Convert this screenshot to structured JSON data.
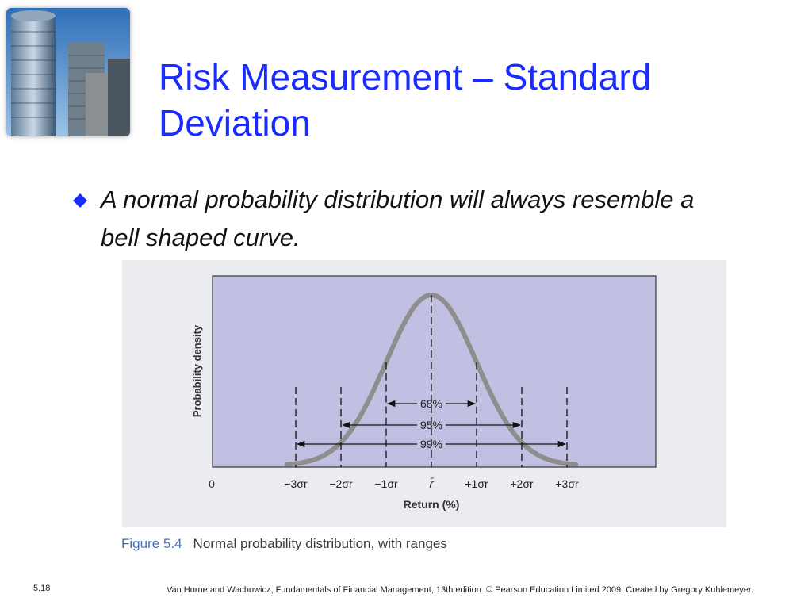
{
  "slide": {
    "title": "Risk Measurement – Standard Deviation",
    "bullet": "A normal probability distribution will always resemble a bell shaped curve.",
    "number": "5.18",
    "footer": "Van Horne and Wachowicz, Fundamentals of Financial Management, 13th edition. © Pearson Education Limited 2009. Created by Gregory Kuhlemeyer."
  },
  "figure": {
    "label": "Figure 5.4",
    "caption": "Normal probability distribution, with ranges"
  },
  "colors": {
    "title": "#1a2bff",
    "bullet": "#1a2bff",
    "plot_bg": "#c1c0e2",
    "curve": "#8e8e8e"
  },
  "chart_data": {
    "type": "line",
    "title": "",
    "xlabel": "Return (%)",
    "ylabel": "Probability density",
    "origin_label": "0",
    "mean_label": "r̄",
    "x": [
      -3,
      -2,
      -1,
      0,
      1,
      2,
      3
    ],
    "ticks": [
      {
        "sigma": -3,
        "label": "−3σr"
      },
      {
        "sigma": -2,
        "label": "−2σr"
      },
      {
        "sigma": -1,
        "label": "−1σr"
      },
      {
        "sigma": 1,
        "label": "+1σr"
      },
      {
        "sigma": 2,
        "label": "+2σr"
      },
      {
        "sigma": 3,
        "label": "+3σr"
      }
    ],
    "ranges": [
      {
        "label": "68%",
        "sigma": 1
      },
      {
        "label": "95%",
        "sigma": 2
      },
      {
        "label": "99%",
        "sigma": 3
      }
    ],
    "grid": false
  }
}
